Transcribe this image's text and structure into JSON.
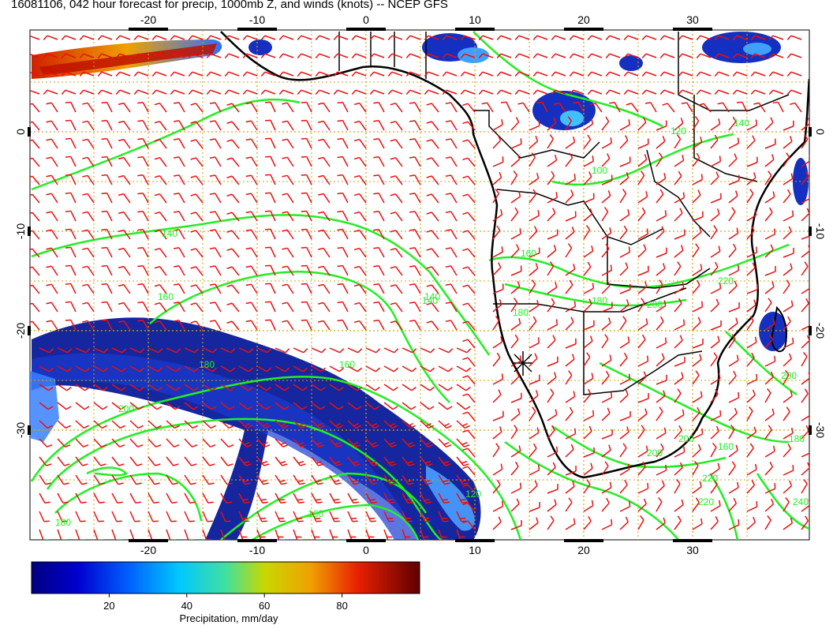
{
  "title": "16081106, 042 hour forecast for precip, 1000mb Z, and winds (knots) -- NCEP GFS",
  "map": {
    "lon_ticks_top": [
      "-20",
      "-10",
      "0",
      "10",
      "20",
      "30"
    ],
    "lon_ticks_bottom": [
      "-20",
      "-10",
      "0",
      "10",
      "20",
      "30"
    ],
    "lat_ticks_left": [
      "0",
      "-10",
      "-20",
      "-30"
    ],
    "lat_ticks_right": [
      "0",
      "-10",
      "-20",
      "-30"
    ],
    "lon_tick_values": [
      -20,
      -10,
      0,
      10,
      20,
      30
    ],
    "lat_tick_values": [
      0,
      -10,
      -20,
      -30
    ],
    "contour_labels": [
      "140",
      "160",
      "180",
      "200",
      "160",
      "140",
      "140",
      "180",
      "200",
      "220",
      "160",
      "100",
      "180",
      "120",
      "140",
      "160",
      "200",
      "180",
      "200",
      "220",
      "240",
      "120",
      "160",
      "180",
      "220",
      "200"
    ],
    "colors": {
      "wind_barb": "#e81010",
      "contour": "#22ee22",
      "coastline": "#000000",
      "grid": "#d4a017"
    }
  },
  "colorbar": {
    "tick_labels": [
      "20",
      "40",
      "60",
      "80"
    ],
    "tick_values": [
      20,
      40,
      60,
      80
    ],
    "range": [
      0,
      100
    ],
    "label": "Precipitation, mm/day"
  }
}
